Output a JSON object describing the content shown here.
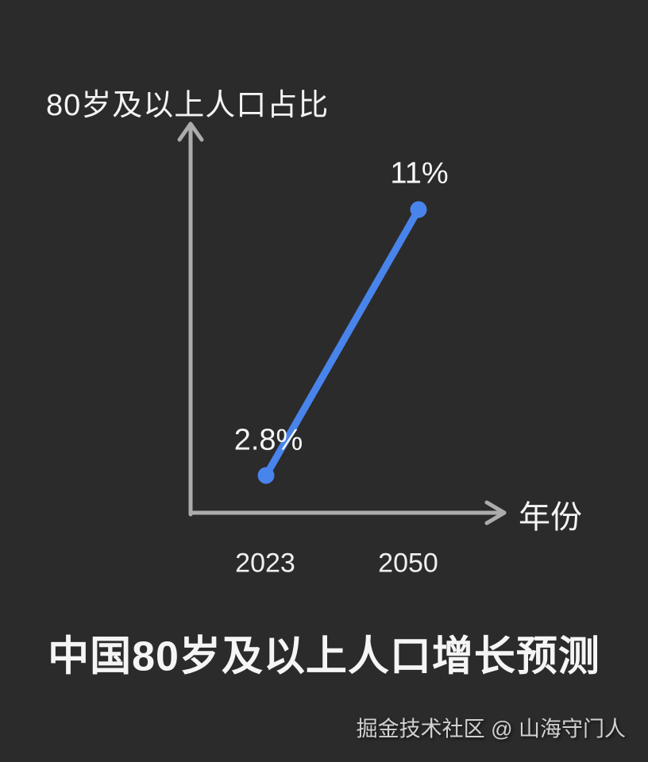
{
  "page": {
    "background_color": "#2b2b2b",
    "title": "中国80岁及以上人口增长预测",
    "watermark": "掘金技术社区 @ 山海守门人"
  },
  "chart_data": {
    "type": "line",
    "title": "中国80岁及以上人口增长预测",
    "ylabel": "80岁及以上人口占比",
    "xlabel": "年份",
    "categories": [
      "2023",
      "2050"
    ],
    "values": [
      2.8,
      11
    ],
    "value_labels": [
      "2.8%",
      "11%"
    ],
    "unit": "%",
    "series_name": "80岁及以上人口占比",
    "line_color": "#4884ec",
    "axis_color": "#acacac",
    "text_color": "#f4f4f4",
    "grid": false,
    "legend_position": "none",
    "annotations": [
      "2.8%",
      "11%"
    ]
  }
}
